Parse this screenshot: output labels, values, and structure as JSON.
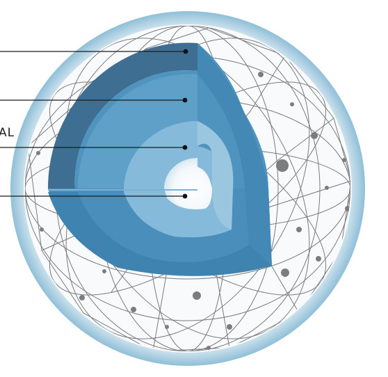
{
  "diagram": {
    "layer_labels": [
      "AL"
    ],
    "colors": {
      "halo_outer": "#ffffff",
      "halo_inner": "#a9cde0",
      "sphere_fill": "#f6f8f9",
      "network_line": "#6e6e6e",
      "crust": "#3f7193",
      "mantle": "#4f93bd",
      "outer_core": "#7eb5d4",
      "inner_core": "#ffffff",
      "leader_line": "#111111"
    }
  }
}
